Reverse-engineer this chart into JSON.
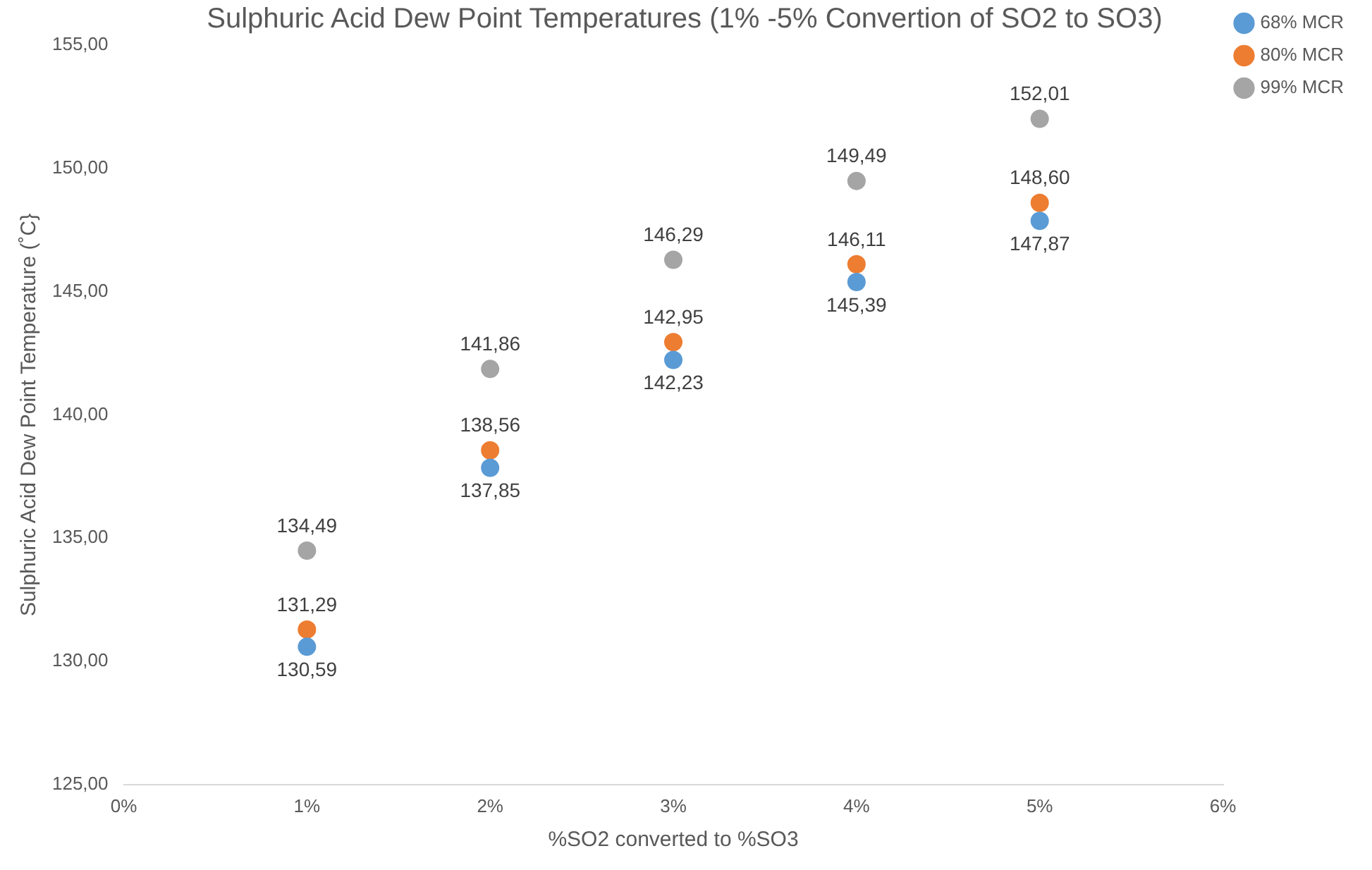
{
  "chart_data": {
    "type": "scatter",
    "title": "Sulphuric Acid Dew Point Temperatures (1% -5% Convertion of SO2 to SO3)",
    "xlabel": "%SO2 converted to %SO3",
    "ylabel": "Sulphuric Acid Dew Point Temperature (˚C}",
    "x": [
      1,
      2,
      3,
      4,
      5
    ],
    "series": [
      {
        "name": "68% MCR",
        "color": "#5b9bd5",
        "values": [
          130.59,
          137.85,
          142.23,
          145.39,
          147.87
        ],
        "value_labels": [
          "130,59",
          "137,85",
          "142,23",
          "145,39",
          "147,87"
        ]
      },
      {
        "name": "80% MCR",
        "color": "#ed7d31",
        "values": [
          131.29,
          138.56,
          142.95,
          146.11,
          148.6
        ],
        "value_labels": [
          "131,29",
          "138,56",
          "142,95",
          "146,11",
          "148,60"
        ]
      },
      {
        "name": "99% MCR",
        "color": "#a5a5a5",
        "values": [
          134.49,
          141.86,
          146.29,
          149.49,
          152.01
        ],
        "value_labels": [
          "134,49",
          "141,86",
          "146,29",
          "149,49",
          "152,01"
        ]
      }
    ],
    "xlim": [
      0,
      6
    ],
    "xticks": [
      {
        "value": 0,
        "label": "0%"
      },
      {
        "value": 1,
        "label": "1%"
      },
      {
        "value": 2,
        "label": "2%"
      },
      {
        "value": 3,
        "label": "3%"
      },
      {
        "value": 4,
        "label": "4%"
      },
      {
        "value": 5,
        "label": "5%"
      },
      {
        "value": 6,
        "label": "6%"
      }
    ],
    "ylim": [
      125,
      155
    ],
    "yticks": [
      {
        "value": 125,
        "label": "125,00"
      },
      {
        "value": 130,
        "label": "130,00"
      },
      {
        "value": 135,
        "label": "135,00"
      },
      {
        "value": 140,
        "label": "140,00"
      },
      {
        "value": 145,
        "label": "145,00"
      },
      {
        "value": 150,
        "label": "150,00"
      },
      {
        "value": 155,
        "label": "155,00"
      }
    ],
    "grid": false,
    "legend": "top right",
    "marker": "circle"
  }
}
